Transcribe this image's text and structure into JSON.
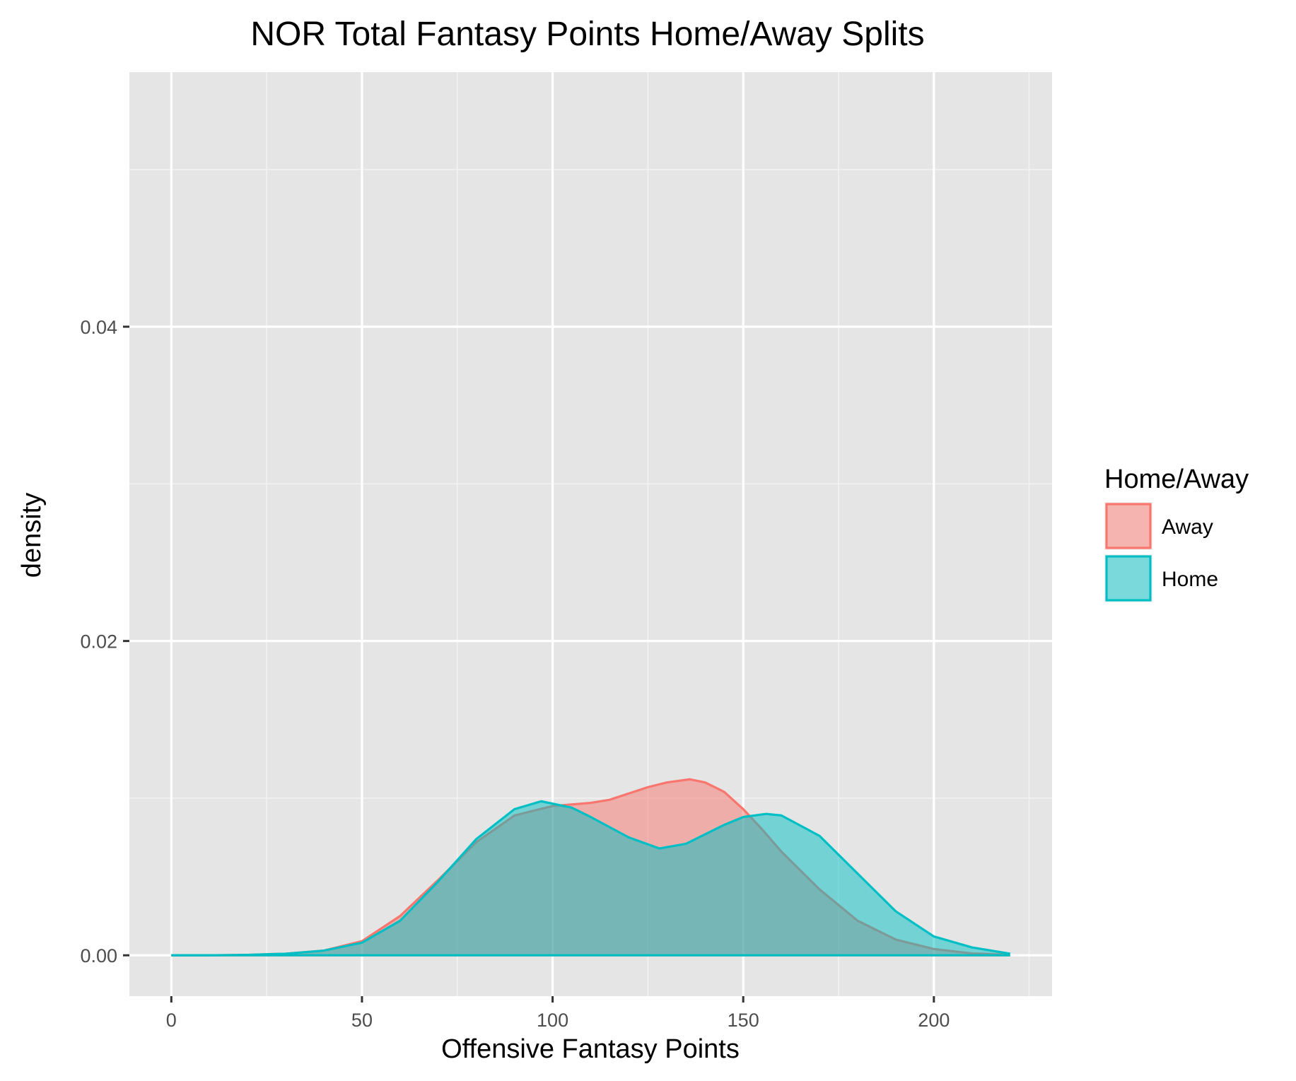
{
  "chart_data": {
    "type": "area",
    "title": "NOR Total Fantasy Points Home/Away Splits",
    "xlabel": "Offensive Fantasy Points",
    "ylabel": "density",
    "xlim": [
      -11,
      231
    ],
    "ylim": [
      -0.0026,
      0.0562
    ],
    "x_ticks": [
      0,
      50,
      100,
      150,
      200
    ],
    "x_tick_labels": [
      "0",
      "50",
      "100",
      "150",
      "200"
    ],
    "y_ticks": [
      0.0,
      0.02,
      0.04
    ],
    "y_tick_labels": [
      "0.00",
      "0.02",
      "0.04"
    ],
    "grid": true,
    "legend": {
      "title": "Home/Away",
      "position": "right"
    },
    "series": [
      {
        "name": "Away",
        "color": "#F8766D",
        "x": [
          0,
          10,
          20,
          30,
          40,
          50,
          60,
          70,
          80,
          90,
          100,
          110,
          115,
          120,
          125,
          130,
          136,
          140,
          145,
          150,
          155,
          160,
          170,
          180,
          190,
          200,
          210,
          220
        ],
        "y": [
          0.0,
          0.0,
          3e-05,
          0.0001,
          0.0003,
          0.0009,
          0.0025,
          0.0048,
          0.0072,
          0.0089,
          0.0095,
          0.0097,
          0.0099,
          0.0103,
          0.0107,
          0.011,
          0.0112,
          0.011,
          0.0104,
          0.0093,
          0.008,
          0.0066,
          0.0042,
          0.0022,
          0.001,
          0.0004,
          0.00012,
          3e-05
        ]
      },
      {
        "name": "Home",
        "color": "#00BFC4",
        "x": [
          0,
          10,
          20,
          30,
          40,
          50,
          60,
          70,
          80,
          90,
          97,
          105,
          110,
          120,
          128,
          135,
          145,
          150,
          156,
          160,
          170,
          180,
          190,
          200,
          210,
          220
        ],
        "y": [
          0.0,
          0.0,
          3e-05,
          0.0001,
          0.0003,
          0.0008,
          0.0022,
          0.0047,
          0.0074,
          0.0093,
          0.0098,
          0.0094,
          0.0088,
          0.0075,
          0.0068,
          0.0071,
          0.0083,
          0.0088,
          0.009,
          0.0089,
          0.0076,
          0.0052,
          0.0028,
          0.0012,
          0.0005,
          0.0001
        ]
      }
    ]
  }
}
